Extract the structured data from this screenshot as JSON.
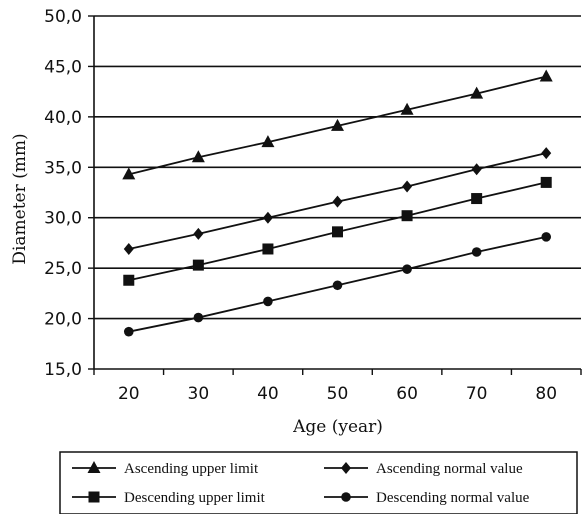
{
  "chart_data": {
    "type": "line",
    "xlabel": "Age (year)",
    "ylabel": "Diameter (mm)",
    "x": [
      20,
      30,
      40,
      50,
      60,
      70,
      80
    ],
    "xlim": [
      15,
      85
    ],
    "ylim": [
      15,
      50
    ],
    "y_ticks": [
      "15,0",
      "20,0",
      "25,0",
      "30,0",
      "35,0",
      "40,0",
      "45,0",
      "50,0"
    ],
    "x_ticks": [
      "20",
      "30",
      "40",
      "50",
      "60",
      "70",
      "80"
    ],
    "grid": "horizontal",
    "legend_position": "bottom",
    "series": [
      {
        "name": "Ascending upper limit",
        "marker": "triangle",
        "values": [
          34.3,
          36.0,
          37.5,
          39.1,
          40.7,
          42.3,
          44.0
        ]
      },
      {
        "name": "Ascending normal value",
        "marker": "diamond",
        "values": [
          26.9,
          28.4,
          30.0,
          31.6,
          33.1,
          34.8,
          36.4
        ]
      },
      {
        "name": "Descending upper limit",
        "marker": "square",
        "values": [
          23.8,
          25.3,
          26.9,
          28.6,
          30.2,
          31.9,
          33.5
        ]
      },
      {
        "name": "Descending normal value",
        "marker": "circle",
        "values": [
          18.7,
          20.1,
          21.7,
          23.3,
          24.9,
          26.6,
          28.1
        ]
      }
    ]
  }
}
